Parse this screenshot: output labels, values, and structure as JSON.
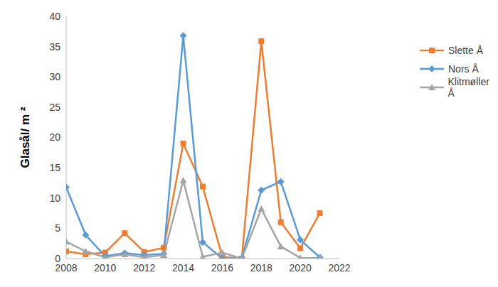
{
  "chart_data": {
    "type": "line",
    "y_label": "Glasål/ m ²",
    "x": [
      2008,
      2009,
      2010,
      2011,
      2012,
      2013,
      2014,
      2015,
      2016,
      2017,
      2018,
      2019,
      2020,
      2021
    ],
    "series": [
      {
        "name": "Slette Å",
        "color": "#ed7d31",
        "marker": "square",
        "values": [
          1.2,
          0.7,
          1.0,
          4.2,
          1.1,
          1.8,
          19.0,
          11.9,
          0.3,
          0.0,
          35.9,
          6.0,
          1.7,
          7.5
        ]
      },
      {
        "name": "Nors Å",
        "color": "#5b9bd5",
        "marker": "diamond",
        "values": [
          11.8,
          3.9,
          0.4,
          0.9,
          0.6,
          0.8,
          36.8,
          2.7,
          0.0,
          0.1,
          11.3,
          12.7,
          3.1,
          0.2
        ]
      },
      {
        "name": "Klitmøller Å",
        "color": "#a5a5a5",
        "marker": "triangle",
        "values": [
          2.8,
          1.2,
          0.2,
          0.7,
          0.2,
          0.6,
          12.9,
          0.3,
          1.0,
          0.0,
          8.2,
          2.0,
          0.1,
          0.1
        ]
      }
    ],
    "xlim": [
      2008,
      2022
    ],
    "xticks": [
      2008,
      2010,
      2012,
      2014,
      2016,
      2018,
      2020,
      2022
    ],
    "ylim": [
      0,
      40
    ],
    "yticks": [
      0,
      5,
      10,
      15,
      20,
      25,
      30,
      35,
      40
    ],
    "legend": "right",
    "grid": false
  }
}
